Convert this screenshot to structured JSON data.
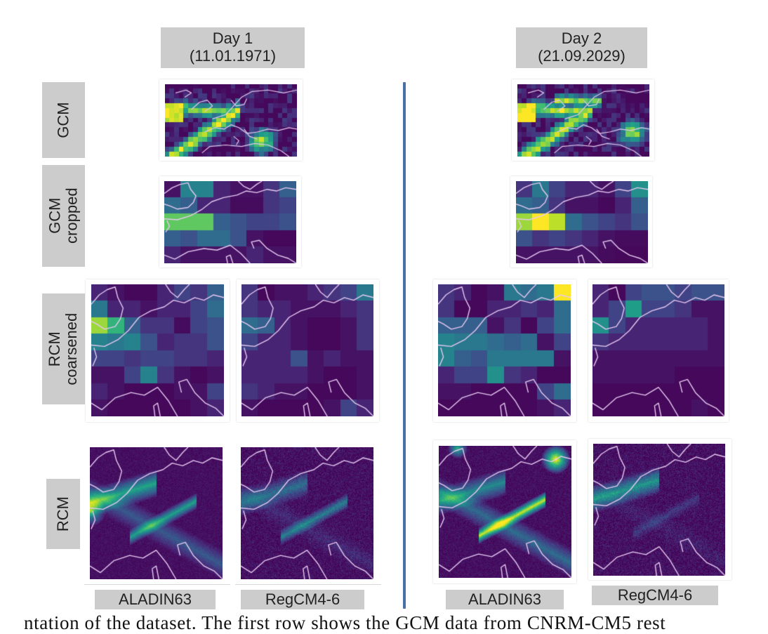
{
  "figure": {
    "columns": [
      {
        "title": "Day 1",
        "date": "(11.01.1971)"
      },
      {
        "title": "Day 2",
        "date": "(21.09.2029)"
      }
    ],
    "rows": [
      {
        "label_line1": "GCM",
        "label_line2": ""
      },
      {
        "label_line1": "GCM",
        "label_line2": "cropped"
      },
      {
        "label_line1": "RCM",
        "label_line2": "coarsened"
      },
      {
        "label_line1": "RCM",
        "label_line2": ""
      }
    ],
    "models": [
      "ALADIN63",
      "RegCM4-6",
      "ALADIN63",
      "RegCM4-6"
    ],
    "colormap": "viridis",
    "colors": {
      "label_background": "#cccccc",
      "divider": "#4a6fa5",
      "coastline": "#e6c8f0",
      "viridis_low": "#440154",
      "viridis_high": "#fde725"
    },
    "panels": {
      "gcm_day1": "GCM field, Day 1",
      "gcm_day2": "GCM field, Day 2",
      "gcm_cropped_day1": "GCM cropped field, Day 1",
      "gcm_cropped_day2": "GCM cropped field, Day 2",
      "rcm_coarsened_aladin_day1": "RCM coarsened ALADIN63, Day 1",
      "rcm_coarsened_regcm_day1": "RCM coarsened RegCM4-6, Day 1",
      "rcm_coarsened_aladin_day2": "RCM coarsened ALADIN63, Day 2",
      "rcm_coarsened_regcm_day2": "RCM coarsened RegCM4-6, Day 2",
      "rcm_aladin_day1": "RCM ALADIN63, Day 1",
      "rcm_regcm_day1": "RCM RegCM4-6, Day 1",
      "rcm_aladin_day2": "RCM ALADIN63, Day 2",
      "rcm_regcm_day2": "RCM RegCM4-6, Day 2"
    },
    "grids": {
      "gcm_cropped_day1": [
        [
          0.05,
          0.45,
          0.45,
          0.1,
          0.05,
          0.05,
          0.15,
          0.3
        ],
        [
          0.35,
          0.3,
          0.1,
          0.1,
          0.03,
          0.03,
          0.15,
          0.2
        ],
        [
          0.75,
          0.75,
          0.75,
          0.3,
          0.25,
          0.2,
          0.2,
          0.25
        ],
        [
          0.3,
          0.25,
          0.35,
          0.35,
          0.25,
          0.05,
          0.02,
          0.02
        ],
        [
          0.1,
          0.05,
          0.05,
          0.05,
          0.05,
          0.1,
          0.05,
          0.05
        ]
      ],
      "gcm_cropped_day2": [
        [
          0.15,
          0.4,
          0.2,
          0.1,
          0.1,
          0.05,
          0.2,
          0.5
        ],
        [
          0.35,
          0.3,
          0.15,
          0.05,
          0.05,
          0.02,
          0.1,
          0.3
        ],
        [
          0.85,
          1.0,
          0.9,
          0.35,
          0.25,
          0.2,
          0.15,
          0.25
        ],
        [
          0.25,
          0.15,
          0.2,
          0.15,
          0.1,
          0.05,
          0.03,
          0.03
        ],
        [
          0.05,
          0.05,
          0.05,
          0.05,
          0.05,
          0.03,
          0.02,
          0.02
        ]
      ],
      "rcm_coarsened_aladin_day1": [
        [
          0.1,
          0.05,
          0.02,
          0.02,
          0.1,
          0.2,
          0.15,
          0.3
        ],
        [
          0.4,
          0.1,
          0.1,
          0.05,
          0.1,
          0.1,
          0.2,
          0.35
        ],
        [
          0.85,
          0.65,
          0.3,
          0.15,
          0.15,
          0.03,
          0.2,
          0.25
        ],
        [
          0.45,
          0.4,
          0.45,
          0.25,
          0.1,
          0.15,
          0.15,
          0.25
        ],
        [
          0.2,
          0.2,
          0.15,
          0.2,
          0.2,
          0.15,
          0.15,
          0.1
        ],
        [
          0.05,
          0.05,
          0.2,
          0.45,
          0.15,
          0.05,
          0.02,
          0.05
        ],
        [
          0.1,
          0.05,
          0.02,
          0.02,
          0.02,
          0.05,
          0.05,
          0.2
        ],
        [
          0.05,
          0.02,
          0.02,
          0.02,
          0.02,
          0.02,
          0.05,
          0.1
        ]
      ],
      "rcm_coarsened_regcm_day1": [
        [
          0.15,
          0.02,
          0.05,
          0.05,
          0.1,
          0.15,
          0.2,
          0.4
        ],
        [
          0.15,
          0.1,
          0.1,
          0.05,
          0.05,
          0.05,
          0.1,
          0.15
        ],
        [
          0.35,
          0.3,
          0.1,
          0.05,
          0.02,
          0.02,
          0.05,
          0.15
        ],
        [
          0.2,
          0.1,
          0.1,
          0.05,
          0.02,
          0.02,
          0.05,
          0.15
        ],
        [
          0.1,
          0.1,
          0.1,
          0.25,
          0.05,
          0.1,
          0.05,
          0.05
        ],
        [
          0.1,
          0.1,
          0.1,
          0.1,
          0.05,
          0.02,
          0.02,
          0.05
        ],
        [
          0.15,
          0.1,
          0.05,
          0.05,
          0.02,
          0.02,
          0.02,
          0.05
        ],
        [
          0.05,
          0.02,
          0.02,
          0.02,
          0.02,
          0.05,
          0.2,
          0.1
        ]
      ],
      "rcm_coarsened_aladin_day2": [
        [
          0.15,
          0.1,
          0.02,
          0.05,
          0.4,
          0.35,
          0.4,
          1.0
        ],
        [
          0.15,
          0.02,
          0.02,
          0.1,
          0.1,
          0.15,
          0.1,
          0.35
        ],
        [
          0.3,
          0.3,
          0.3,
          0.05,
          0.15,
          0.02,
          0.2,
          0.35
        ],
        [
          0.45,
          0.4,
          0.4,
          0.35,
          0.3,
          0.35,
          0.05,
          0.2
        ],
        [
          0.45,
          0.3,
          0.25,
          0.4,
          0.4,
          0.4,
          0.4,
          0.05
        ],
        [
          0.1,
          0.2,
          0.2,
          0.5,
          0.15,
          0.1,
          0.02,
          0.02
        ],
        [
          0.05,
          0.05,
          0.02,
          0.02,
          0.02,
          0.02,
          0.2,
          0.35
        ],
        [
          0.02,
          0.02,
          0.02,
          0.02,
          0.02,
          0.02,
          0.05,
          0.1
        ]
      ],
      "rcm_coarsened_regcm_day2": [
        [
          0.1,
          0.02,
          0.2,
          0.25,
          0.25,
          0.2,
          0.25,
          0.25
        ],
        [
          0.1,
          0.2,
          0.55,
          0.2,
          0.2,
          0.15,
          0.05,
          0.05
        ],
        [
          0.5,
          0.2,
          0.1,
          0.1,
          0.1,
          0.1,
          0.1,
          0.05
        ],
        [
          0.15,
          0.1,
          0.1,
          0.1,
          0.1,
          0.1,
          0.1,
          0.05
        ],
        [
          0.05,
          0.05,
          0.05,
          0.05,
          0.05,
          0.05,
          0.05,
          0.05
        ],
        [
          0.05,
          0.05,
          0.05,
          0.05,
          0.05,
          0.02,
          0.02,
          0.02
        ],
        [
          0.02,
          0.02,
          0.02,
          0.02,
          0.02,
          0.02,
          0.02,
          0.02
        ],
        [
          0.02,
          0.02,
          0.02,
          0.02,
          0.02,
          0.02,
          0.05,
          0.02
        ]
      ]
    }
  },
  "caption_fragment": "ntation of the dataset. The first row shows the GCM data from CNRM-CM5 rest"
}
